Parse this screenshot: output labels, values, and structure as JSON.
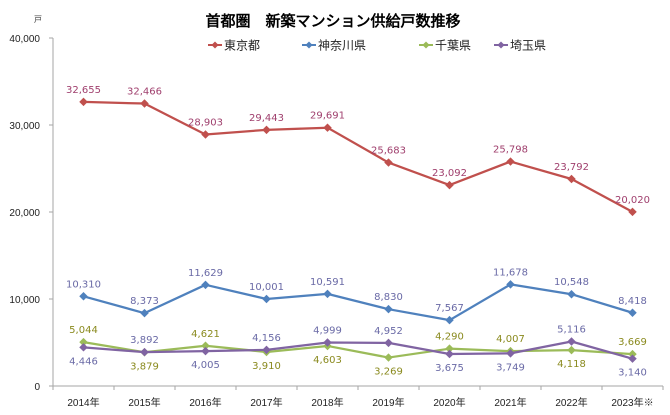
{
  "chart_data": {
    "type": "line",
    "title": "首都圏　新築マンション供給戸数推移",
    "xlabel": "",
    "ylabel": "戸",
    "ylim": [
      0,
      40000
    ],
    "yticks": [
      0,
      10000,
      20000,
      30000,
      40000
    ],
    "ytick_labels": [
      "0",
      "10,000",
      "20,000",
      "30,000",
      "40,000"
    ],
    "grid": false,
    "legend_position": "top-center",
    "categories": [
      "2014年",
      "2015年",
      "2016年",
      "2017年",
      "2018年",
      "2019年",
      "2020年",
      "2021年",
      "2022年",
      "2023年※"
    ],
    "series": [
      {
        "name": "東京都",
        "color": "#c0504d",
        "label_color": "#a0406e",
        "values": [
          32655,
          32466,
          28903,
          29443,
          29691,
          25683,
          23092,
          25798,
          23792,
          20020
        ],
        "labels": [
          "32,655",
          "32,466",
          "28,903",
          "29,443",
          "29,691",
          "25,683",
          "23,092",
          "25,798",
          "23,792",
          "20,020"
        ],
        "label_side": [
          "above",
          "above",
          "above",
          "above",
          "above",
          "above",
          "above",
          "above",
          "above",
          "above"
        ]
      },
      {
        "name": "神奈川県",
        "color": "#4f81bd",
        "label_color": "#6a6aa6",
        "values": [
          10310,
          8373,
          11629,
          10001,
          10591,
          8830,
          7567,
          11678,
          10548,
          8418
        ],
        "labels": [
          "10,310",
          "8,373",
          "11,629",
          "10,001",
          "10,591",
          "8,830",
          "7,567",
          "11,678",
          "10,548",
          "8,418"
        ],
        "label_side": [
          "above",
          "above",
          "above",
          "above",
          "above",
          "above",
          "above",
          "above",
          "above",
          "above"
        ]
      },
      {
        "name": "千葉県",
        "color": "#9bbb59",
        "label_color": "#8a8a1e",
        "values": [
          5044,
          3879,
          4621,
          3910,
          4603,
          3269,
          4290,
          4007,
          4118,
          3669
        ],
        "labels": [
          "5,044",
          "3,879",
          "4,621",
          "3,910",
          "4,603",
          "3,269",
          "4,290",
          "4,007",
          "4,118",
          "3,669"
        ],
        "label_side": [
          "above",
          "below",
          "above",
          "below",
          "below",
          "below",
          "above",
          "above",
          "below",
          "above"
        ]
      },
      {
        "name": "埼玉県",
        "color": "#8064a2",
        "label_color": "#6a6aa6",
        "values": [
          4446,
          3892,
          4005,
          4156,
          4999,
          4952,
          3675,
          3749,
          5116,
          3140
        ],
        "labels": [
          "4,446",
          "3,892",
          "4,005",
          "4,156",
          "4,999",
          "4,952",
          "3,675",
          "3,749",
          "5,116",
          "3,140"
        ],
        "label_side": [
          "below",
          "above",
          "below",
          "above",
          "above",
          "above",
          "below",
          "below",
          "above",
          "below"
        ]
      }
    ]
  }
}
